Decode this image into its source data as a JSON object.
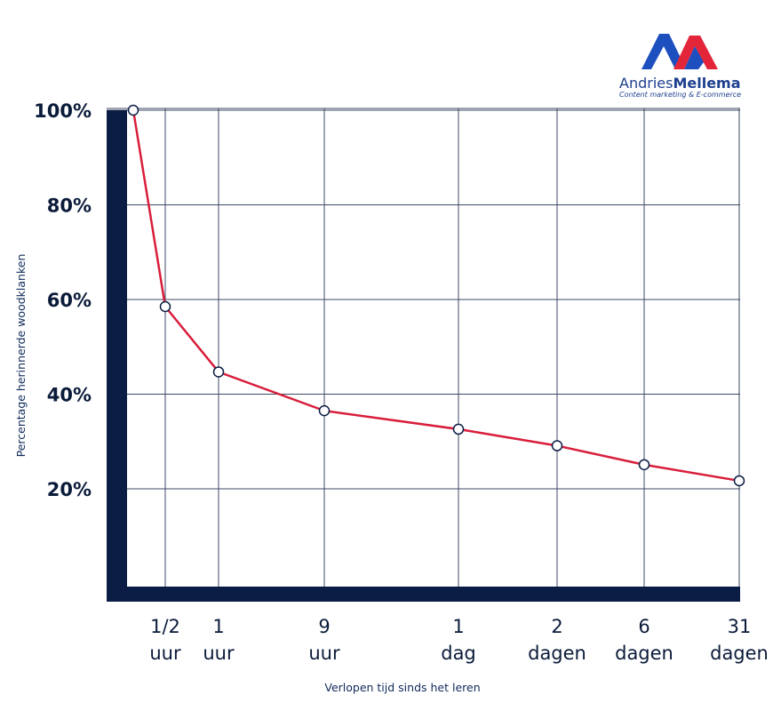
{
  "brand": {
    "name_first": "Andries",
    "name_last": "Mellema",
    "tagline": "Content marketing & E-commerce",
    "colors": {
      "blue": "#1d4fbf",
      "red": "#e3253a"
    }
  },
  "chart_data": {
    "type": "line",
    "xlabel": "Verlopen tijd sinds het leren",
    "ylabel": "Percentage herinnerde woodklanken",
    "y_ticks": [
      "100%",
      "80%",
      "60%",
      "40%",
      "20%"
    ],
    "x_ticks": [
      {
        "line1": "1/2",
        "line2": "uur"
      },
      {
        "line1": "1",
        "line2": "uur"
      },
      {
        "line1": "9",
        "line2": "uur"
      },
      {
        "line1": "1",
        "line2": "dag"
      },
      {
        "line1": "2",
        "line2": "dagen"
      },
      {
        "line1": "6",
        "line2": "dagen"
      },
      {
        "line1": "31",
        "line2": "dagen"
      }
    ],
    "x_hours": [
      0,
      0.5,
      1,
      9,
      24,
      48,
      144,
      744
    ],
    "y_percent": [
      100,
      58.5,
      44.7,
      36.5,
      32.6,
      29.1,
      25.1,
      21.7
    ],
    "ylim": [
      0,
      100
    ],
    "grid": true,
    "colors": {
      "line": "#d81e3c",
      "axis": "#0b1d45",
      "grid": "#3d4966",
      "marker_fill": "#ffffff",
      "marker_stroke": "#0b1d45"
    }
  }
}
